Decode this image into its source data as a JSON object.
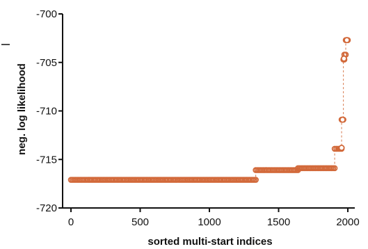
{
  "chart_data": {
    "type": "scatter",
    "title": "",
    "xlabel": "sorted multi-start indices",
    "ylabel": "neg. log likelihood",
    "xlim": [
      0,
      2000
    ],
    "ylim": [
      -720,
      -700
    ],
    "x_ticks": [
      0,
      500,
      1000,
      1500,
      2000
    ],
    "x_tick_labels": [
      "0",
      "500",
      "1000",
      "1500",
      "2000"
    ],
    "y_ticks": [
      -720,
      -715,
      -710,
      -705,
      -700
    ],
    "y_tick_labels": [
      "-720",
      "-715",
      "-710",
      "-705",
      "-700"
    ],
    "grid": false,
    "legend": "none",
    "series": [
      {
        "color": "#d2693a",
        "marker": "open-circle",
        "connect_style": "dashed",
        "segments": [
          {
            "x_start": 0,
            "x_end": 1335,
            "y": -717.1
          },
          {
            "x_start": 1335,
            "x_end": 1640,
            "y": -716.1
          },
          {
            "x_start": 1640,
            "x_end": 1905,
            "y": -715.9
          },
          {
            "x_start": 1905,
            "x_end": 1955,
            "y": -713.9
          },
          {
            "x_start": 1955,
            "x_end": 1968,
            "y": -710.9
          },
          {
            "x_start": 1968,
            "x_end": 1975,
            "y": -704.7
          },
          {
            "x_start": 1975,
            "x_end": 1985,
            "y": -704.2
          },
          {
            "x_start": 1985,
            "x_end": 2000,
            "y": -702.7
          }
        ],
        "extra_points": [
          {
            "x": 1955,
            "y": -713.8
          },
          {
            "x": 1962,
            "y": -710.9
          },
          {
            "x": 1972,
            "y": -704.6
          },
          {
            "x": 1993,
            "y": -702.7
          }
        ]
      }
    ]
  }
}
